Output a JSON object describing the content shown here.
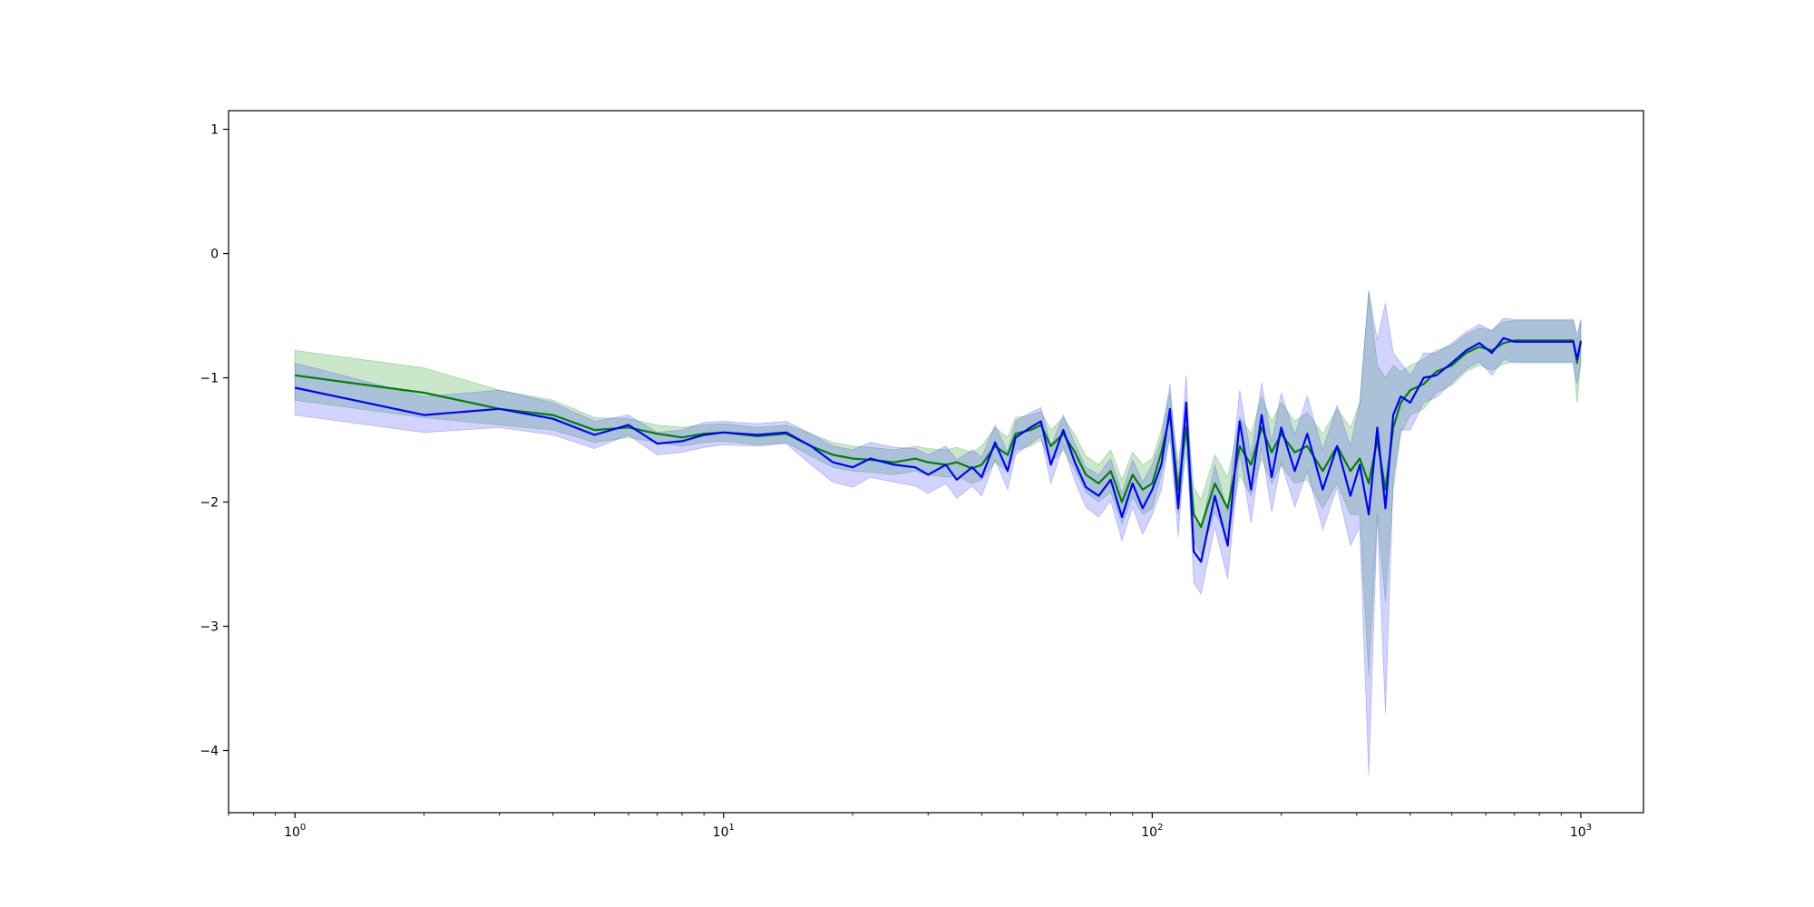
{
  "chart_data": {
    "type": "line",
    "title": "",
    "xlabel": "",
    "ylabel": "",
    "xscale": "log",
    "xlim": [
      0.7,
      1400
    ],
    "ylim": [
      -4.5,
      1.15
    ],
    "grid": false,
    "legend": "none",
    "x_ticks": [
      {
        "value": 1,
        "base": "10",
        "exp": "0"
      },
      {
        "value": 10,
        "base": "10",
        "exp": "1"
      },
      {
        "value": 100,
        "base": "10",
        "exp": "2"
      },
      {
        "value": 1000,
        "base": "10",
        "exp": "3"
      }
    ],
    "y_ticks": [
      {
        "value": 1,
        "label": "1"
      },
      {
        "value": 0,
        "label": "0"
      },
      {
        "value": -1,
        "label": "−1"
      },
      {
        "value": -2,
        "label": "−2"
      },
      {
        "value": -3,
        "label": "−3"
      },
      {
        "value": -4,
        "label": "−4"
      }
    ],
    "series": [
      {
        "color": "#008000",
        "band_color": "#2ca02c",
        "points": [
          [
            1,
            -0.98,
            -0.78,
            -1.18
          ],
          [
            2,
            -1.12,
            -0.92,
            -1.32
          ],
          [
            3,
            -1.25,
            -1.1,
            -1.38
          ],
          [
            4,
            -1.3,
            -1.18,
            -1.42
          ],
          [
            5,
            -1.42,
            -1.32,
            -1.52
          ],
          [
            6,
            -1.4,
            -1.33,
            -1.48
          ],
          [
            7,
            -1.45,
            -1.38,
            -1.52
          ],
          [
            8,
            -1.48,
            -1.4,
            -1.55
          ],
          [
            9,
            -1.45,
            -1.38,
            -1.52
          ],
          [
            10,
            -1.44,
            -1.37,
            -1.51
          ],
          [
            12,
            -1.47,
            -1.4,
            -1.54
          ],
          [
            14,
            -1.45,
            -1.38,
            -1.52
          ],
          [
            16,
            -1.55,
            -1.45,
            -1.63
          ],
          [
            18,
            -1.62,
            -1.52,
            -1.72
          ],
          [
            20,
            -1.65,
            -1.55,
            -1.75
          ],
          [
            22,
            -1.66,
            -1.56,
            -1.76
          ],
          [
            25,
            -1.68,
            -1.58,
            -1.78
          ],
          [
            28,
            -1.65,
            -1.55,
            -1.75
          ],
          [
            30,
            -1.68,
            -1.57,
            -1.78
          ],
          [
            33,
            -1.7,
            -1.58,
            -1.8
          ],
          [
            35,
            -1.68,
            -1.56,
            -1.79
          ],
          [
            38,
            -1.73,
            -1.6,
            -1.85
          ],
          [
            40,
            -1.7,
            -1.55,
            -1.82
          ],
          [
            43,
            -1.55,
            -1.4,
            -1.68
          ],
          [
            46,
            -1.62,
            -1.48,
            -1.75
          ],
          [
            48,
            -1.45,
            -1.32,
            -1.58
          ],
          [
            52,
            -1.42,
            -1.3,
            -1.55
          ],
          [
            55,
            -1.38,
            -1.27,
            -1.5
          ],
          [
            58,
            -1.55,
            -1.42,
            -1.68
          ],
          [
            62,
            -1.45,
            -1.32,
            -1.58
          ],
          [
            66,
            -1.6,
            -1.46,
            -1.74
          ],
          [
            70,
            -1.78,
            -1.63,
            -1.92
          ],
          [
            75,
            -1.85,
            -1.7,
            -2.0
          ],
          [
            80,
            -1.75,
            -1.58,
            -1.92
          ],
          [
            85,
            -2.0,
            -1.82,
            -2.18
          ],
          [
            90,
            -1.78,
            -1.6,
            -1.96
          ],
          [
            95,
            -1.9,
            -1.7,
            -2.1
          ],
          [
            100,
            -1.85,
            -1.65,
            -2.05
          ],
          [
            105,
            -1.6,
            -1.42,
            -1.78
          ],
          [
            110,
            -1.3,
            -1.12,
            -1.48
          ],
          [
            115,
            -1.9,
            -1.7,
            -2.1
          ],
          [
            120,
            -1.4,
            -1.2,
            -1.6
          ],
          [
            125,
            -2.1,
            -1.88,
            -2.32
          ],
          [
            130,
            -2.2,
            -1.98,
            -2.42
          ],
          [
            140,
            -1.85,
            -1.62,
            -2.08
          ],
          [
            150,
            -2.05,
            -1.8,
            -2.3
          ],
          [
            160,
            -1.55,
            -1.32,
            -1.78
          ],
          [
            170,
            -1.7,
            -1.45,
            -1.95
          ],
          [
            180,
            -1.4,
            -1.15,
            -1.65
          ],
          [
            190,
            -1.6,
            -1.35,
            -1.85
          ],
          [
            200,
            -1.45,
            -1.2,
            -1.7
          ],
          [
            215,
            -1.6,
            -1.35,
            -1.85
          ],
          [
            230,
            -1.55,
            -1.28,
            -1.82
          ],
          [
            250,
            -1.75,
            -1.45,
            -2.05
          ],
          [
            270,
            -1.55,
            -1.25,
            -1.85
          ],
          [
            290,
            -1.75,
            -1.4,
            -2.1
          ],
          [
            305,
            -1.65,
            -1.2,
            -2.1
          ],
          [
            320,
            -1.85,
            -0.3,
            -3.4
          ],
          [
            335,
            -1.5,
            -0.9,
            -2.1
          ],
          [
            350,
            -1.9,
            -1.0,
            -2.8
          ],
          [
            365,
            -1.4,
            -0.9,
            -1.9
          ],
          [
            380,
            -1.2,
            -0.95,
            -1.45
          ],
          [
            400,
            -1.1,
            -0.9,
            -1.3
          ],
          [
            430,
            -1.05,
            -0.85,
            -1.25
          ],
          [
            460,
            -0.95,
            -0.78,
            -1.12
          ],
          [
            500,
            -0.9,
            -0.74,
            -1.06
          ],
          [
            540,
            -0.8,
            -0.65,
            -0.95
          ],
          [
            580,
            -0.75,
            -0.6,
            -0.9
          ],
          [
            620,
            -0.78,
            -0.62,
            -0.94
          ],
          [
            660,
            -0.72,
            -0.55,
            -0.89
          ],
          [
            700,
            -0.7,
            -0.54,
            -0.87
          ],
          [
            800,
            -0.7,
            -0.54,
            -0.87
          ],
          [
            900,
            -0.7,
            -0.54,
            -0.87
          ],
          [
            960,
            -0.7,
            -0.54,
            -0.87
          ],
          [
            980,
            -0.88,
            -0.7,
            -1.2
          ],
          [
            1000,
            -0.7,
            -0.54,
            -0.87
          ]
        ]
      },
      {
        "color": "#0000ff",
        "band_color": "#4f4fff",
        "points": [
          [
            1,
            -1.08,
            -0.88,
            -1.3
          ],
          [
            2,
            -1.3,
            -1.15,
            -1.44
          ],
          [
            3,
            -1.25,
            -1.1,
            -1.4
          ],
          [
            4,
            -1.33,
            -1.2,
            -1.46
          ],
          [
            5,
            -1.46,
            -1.35,
            -1.57
          ],
          [
            6,
            -1.38,
            -1.3,
            -1.46
          ],
          [
            7,
            -1.53,
            -1.44,
            -1.62
          ],
          [
            8,
            -1.51,
            -1.42,
            -1.6
          ],
          [
            9,
            -1.46,
            -1.36,
            -1.56
          ],
          [
            10,
            -1.44,
            -1.35,
            -1.54
          ],
          [
            12,
            -1.46,
            -1.37,
            -1.55
          ],
          [
            14,
            -1.44,
            -1.35,
            -1.53
          ],
          [
            16,
            -1.55,
            -1.45,
            -1.7
          ],
          [
            18,
            -1.68,
            -1.55,
            -1.84
          ],
          [
            20,
            -1.72,
            -1.58,
            -1.88
          ],
          [
            22,
            -1.65,
            -1.52,
            -1.8
          ],
          [
            25,
            -1.7,
            -1.56,
            -1.84
          ],
          [
            28,
            -1.72,
            -1.57,
            -1.87
          ],
          [
            30,
            -1.78,
            -1.62,
            -1.93
          ],
          [
            33,
            -1.7,
            -1.55,
            -1.85
          ],
          [
            35,
            -1.82,
            -1.66,
            -1.97
          ],
          [
            38,
            -1.72,
            -1.58,
            -1.87
          ],
          [
            40,
            -1.8,
            -1.64,
            -1.95
          ],
          [
            43,
            -1.52,
            -1.38,
            -1.66
          ],
          [
            46,
            -1.75,
            -1.6,
            -1.9
          ],
          [
            48,
            -1.48,
            -1.35,
            -1.62
          ],
          [
            52,
            -1.4,
            -1.28,
            -1.53
          ],
          [
            55,
            -1.35,
            -1.24,
            -1.47
          ],
          [
            58,
            -1.7,
            -1.55,
            -1.85
          ],
          [
            62,
            -1.42,
            -1.3,
            -1.55
          ],
          [
            66,
            -1.68,
            -1.53,
            -1.83
          ],
          [
            70,
            -1.88,
            -1.72,
            -2.04
          ],
          [
            75,
            -1.95,
            -1.78,
            -2.12
          ],
          [
            80,
            -1.82,
            -1.65,
            -1.99
          ],
          [
            85,
            -2.12,
            -1.93,
            -2.31
          ],
          [
            90,
            -1.85,
            -1.66,
            -2.04
          ],
          [
            95,
            -2.05,
            -1.84,
            -2.26
          ],
          [
            100,
            -1.9,
            -1.7,
            -2.1
          ],
          [
            105,
            -1.7,
            -1.5,
            -1.9
          ],
          [
            110,
            -1.25,
            -1.05,
            -1.45
          ],
          [
            115,
            -2.05,
            -1.82,
            -2.28
          ],
          [
            120,
            -1.2,
            -0.98,
            -1.42
          ],
          [
            125,
            -2.4,
            -2.15,
            -2.65
          ],
          [
            130,
            -2.48,
            -2.22,
            -2.74
          ],
          [
            140,
            -1.95,
            -1.7,
            -2.2
          ],
          [
            150,
            -2.35,
            -2.08,
            -2.62
          ],
          [
            160,
            -1.35,
            -1.1,
            -1.6
          ],
          [
            170,
            -1.9,
            -1.63,
            -2.17
          ],
          [
            180,
            -1.3,
            -1.04,
            -1.56
          ],
          [
            190,
            -1.8,
            -1.52,
            -2.08
          ],
          [
            200,
            -1.4,
            -1.12,
            -1.68
          ],
          [
            215,
            -1.75,
            -1.46,
            -2.04
          ],
          [
            230,
            -1.45,
            -1.15,
            -1.75
          ],
          [
            250,
            -1.9,
            -1.58,
            -2.22
          ],
          [
            270,
            -1.55,
            -1.22,
            -1.88
          ],
          [
            290,
            -1.95,
            -1.55,
            -2.35
          ],
          [
            305,
            -1.7,
            -1.2,
            -2.2
          ],
          [
            320,
            -2.1,
            -0.3,
            -4.2
          ],
          [
            335,
            -1.4,
            -0.7,
            -2.1
          ],
          [
            350,
            -2.05,
            -0.4,
            -3.7
          ],
          [
            365,
            -1.3,
            -0.8,
            -1.8
          ],
          [
            380,
            -1.15,
            -0.88,
            -1.42
          ],
          [
            400,
            -1.2,
            -0.98,
            -1.42
          ],
          [
            430,
            -1.0,
            -0.8,
            -1.2
          ],
          [
            460,
            -0.98,
            -0.8,
            -1.16
          ],
          [
            500,
            -0.88,
            -0.72,
            -1.04
          ],
          [
            540,
            -0.78,
            -0.63,
            -0.93
          ],
          [
            580,
            -0.72,
            -0.57,
            -0.87
          ],
          [
            620,
            -0.8,
            -0.62,
            -0.98
          ],
          [
            660,
            -0.68,
            -0.52,
            -0.85
          ],
          [
            700,
            -0.71,
            -0.53,
            -0.88
          ],
          [
            800,
            -0.71,
            -0.53,
            -0.88
          ],
          [
            900,
            -0.71,
            -0.53,
            -0.88
          ],
          [
            960,
            -0.71,
            -0.53,
            -0.88
          ],
          [
            980,
            -0.85,
            -0.65,
            -1.05
          ],
          [
            1000,
            -0.71,
            -0.53,
            -0.88
          ]
        ]
      }
    ]
  }
}
